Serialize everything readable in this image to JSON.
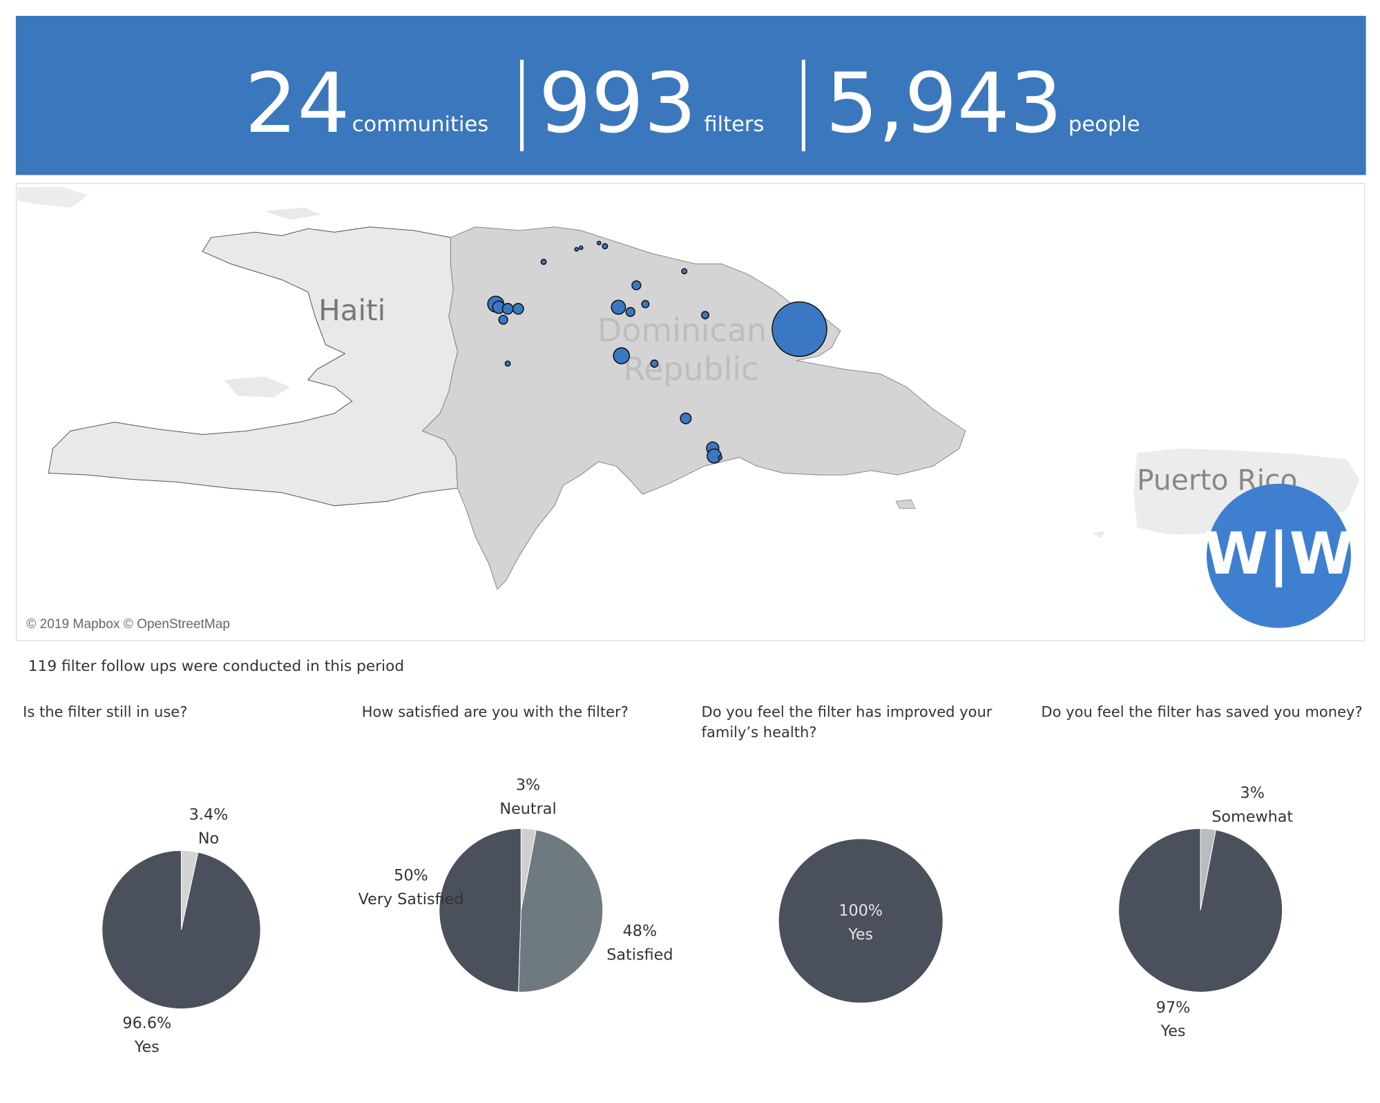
{
  "header": {
    "stats": [
      {
        "number": "24",
        "unit": "communities"
      },
      {
        "number": "993",
        "unit": "filters"
      },
      {
        "number": "5,943",
        "unit": "people"
      }
    ]
  },
  "map": {
    "labels": [
      "Haiti",
      "Dominican Republic",
      "Puerto Rico"
    ],
    "attribution": "© 2019 Mapbox © OpenStreetMap",
    "logo": "W|W",
    "points": [
      {
        "lon": -71.46,
        "lat": 19.42,
        "filters": 49
      },
      {
        "lon": -71.44,
        "lat": 19.4,
        "filters": 29
      },
      {
        "lon": -71.38,
        "lat": 19.39,
        "filters": 22
      },
      {
        "lon": -71.31,
        "lat": 19.39,
        "filters": 22
      },
      {
        "lon": -71.41,
        "lat": 19.32,
        "filters": 15
      },
      {
        "lon": -71.14,
        "lat": 19.69,
        "filters": 5
      },
      {
        "lon": -70.92,
        "lat": 19.77,
        "filters": 2
      },
      {
        "lon": -70.89,
        "lat": 19.78,
        "filters": 2
      },
      {
        "lon": -70.77,
        "lat": 19.81,
        "filters": 2
      },
      {
        "lon": -70.73,
        "lat": 19.79,
        "filters": 5
      },
      {
        "lon": -70.52,
        "lat": 19.54,
        "filters": 15
      },
      {
        "lon": -70.46,
        "lat": 19.42,
        "filters": 10
      },
      {
        "lon": -70.64,
        "lat": 19.4,
        "filters": 38
      },
      {
        "lon": -70.56,
        "lat": 19.37,
        "filters": 15
      },
      {
        "lon": -70.2,
        "lat": 19.63,
        "filters": 5
      },
      {
        "lon": -70.06,
        "lat": 19.35,
        "filters": 10
      },
      {
        "lon": -69.43,
        "lat": 19.26,
        "filters": 577
      },
      {
        "lon": -70.62,
        "lat": 19.09,
        "filters": 49
      },
      {
        "lon": -70.4,
        "lat": 19.04,
        "filters": 10
      },
      {
        "lon": -71.38,
        "lat": 19.04,
        "filters": 5
      },
      {
        "lon": -70.19,
        "lat": 18.69,
        "filters": 22
      },
      {
        "lon": -70.01,
        "lat": 18.5,
        "filters": 29
      },
      {
        "lon": -70.0,
        "lat": 18.45,
        "filters": 38
      },
      {
        "lon": -69.96,
        "lat": 18.44,
        "filters": 2
      }
    ]
  },
  "note": "119 filter follow ups were conducted in this period",
  "chart_data": [
    {
      "type": "pie",
      "title": "Is the filter still in use?",
      "categories": [
        "No",
        "Yes"
      ],
      "values": [
        3.4,
        96.6
      ],
      "value_labels": [
        "3.4%",
        "96.6%"
      ],
      "colors": [
        "#d4d4d4",
        "#4a505c"
      ]
    },
    {
      "type": "pie",
      "title": "How satisfied are you with the filter?",
      "categories": [
        "Neutral",
        "Satisfied",
        "Very Satisfied"
      ],
      "values": [
        3,
        48,
        50
      ],
      "value_labels": [
        "3%",
        "48%",
        "50%"
      ],
      "colors": [
        "#cfcfcf",
        "#6e7a80",
        "#4a505c"
      ]
    },
    {
      "type": "pie",
      "title": "Do you feel the filter has improved your family’s health?",
      "categories": [
        "Yes"
      ],
      "values": [
        100
      ],
      "value_labels": [
        "100%"
      ],
      "colors": [
        "#4a505c"
      ]
    },
    {
      "type": "pie",
      "title": "Do you feel the filter has saved you money?",
      "categories": [
        "Somewhat",
        "Yes"
      ],
      "values": [
        3,
        97
      ],
      "value_labels": [
        "3%",
        "97%"
      ],
      "colors": [
        "#b8bcbf",
        "#4a505c"
      ]
    }
  ]
}
